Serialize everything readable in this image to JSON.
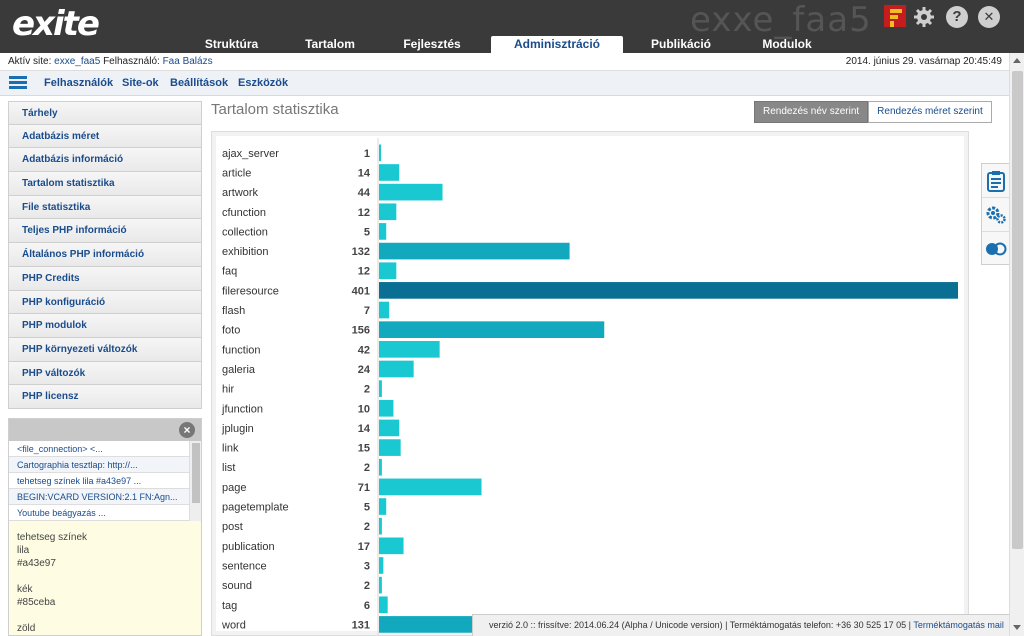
{
  "header": {
    "logo": "exite",
    "site_name": "exxe_faa5",
    "icons": [
      "gear-icon",
      "help-icon",
      "close-icon"
    ],
    "help_glyph": "?",
    "close_glyph": "✕"
  },
  "nav": {
    "tabs": [
      {
        "label": "Struktúra"
      },
      {
        "label": "Tartalom"
      },
      {
        "label": "Fejlesztés"
      },
      {
        "label": "Adminisztráció",
        "active": true
      },
      {
        "label": "Publikáció"
      },
      {
        "label": "Modulok"
      }
    ]
  },
  "infobar": {
    "active_site_prefix": "Aktív site:",
    "active_site": "exxe_faa5",
    "user_prefix": "Felhasználó:",
    "user": "Faa Balázs",
    "datetime": "2014. június 29. vasárnap 20:45:49"
  },
  "submenu": {
    "items": [
      "Felhasználók",
      "Site-ok",
      "Beállítások",
      "Eszközök"
    ]
  },
  "sidebar": {
    "items": [
      "Tárhely",
      "Adatbázis méret",
      "Adatbázis információ",
      "Tartalom statisztika",
      "File statisztika",
      "Teljes PHP információ",
      "Általános PHP információ",
      "PHP Credits",
      "PHP konfiguráció",
      "PHP modulok",
      "PHP környezeti változók",
      "PHP változók",
      "PHP licensz"
    ]
  },
  "clipboard": {
    "items": [
      "<file_connection> <...",
      "Cartographia tesztlap: http://...",
      "tehetseg színek lila #a43e97 ...",
      "BEGIN:VCARD VERSION:2.1 FN:Agn...",
      "Youtube beágyazás ..."
    ],
    "preview_lines": [
      "tehetseg színek",
      "lila",
      "#a43e97",
      "",
      "kék",
      "#85ceba",
      "",
      "zöld"
    ]
  },
  "main": {
    "title": "Tartalom statisztika",
    "sort_by_name": "Rendezés név szerint",
    "sort_by_size": "Rendezés méret szerint"
  },
  "chart_data": {
    "type": "bar",
    "orientation": "horizontal",
    "categories": [
      "ajax_server",
      "article",
      "artwork",
      "cfunction",
      "collection",
      "exhibition",
      "faq",
      "fileresource",
      "flash",
      "foto",
      "function",
      "galeria",
      "hir",
      "jfunction",
      "jplugin",
      "link",
      "list",
      "page",
      "pagetemplate",
      "post",
      "publication",
      "sentence",
      "sound",
      "tag",
      "word"
    ],
    "values": [
      1,
      14,
      44,
      12,
      5,
      132,
      12,
      401,
      7,
      156,
      42,
      24,
      2,
      10,
      14,
      15,
      2,
      71,
      5,
      2,
      17,
      3,
      2,
      6,
      131
    ],
    "xlim": [
      0,
      401
    ],
    "colors": {
      "bar": "#1ac8d2",
      "bar_mid": "#12a9bf",
      "bar_max": "#0b6f93"
    },
    "grid": false,
    "legend": "none"
  },
  "footer": {
    "text": "verzió 2.0 :: frissítve: 2014.06.24 (Alpha / Unicode version) | Terméktámogatás telefon: +36 30 525 17 05 |",
    "link": "Terméktámogatás mail"
  },
  "tools": [
    "clipboard-icon",
    "settings-cogs-icon",
    "toggle-icon"
  ]
}
